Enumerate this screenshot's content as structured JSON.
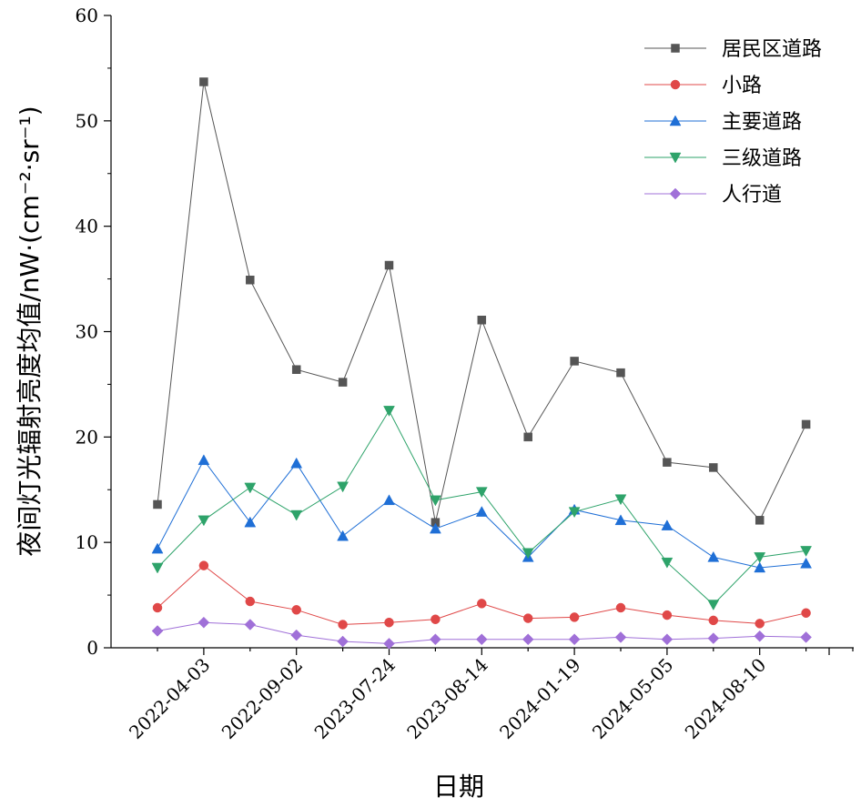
{
  "chart_data": {
    "type": "line",
    "xlabel": "日期",
    "ylabel": "夜间灯光辐射亮度均值/nW·(cm⁻²·sr⁻¹)",
    "ylim": [
      0,
      60
    ],
    "yticks": [
      "0",
      "10",
      "20",
      "30",
      "40",
      "50",
      "60"
    ],
    "x_tick_labels": [
      "2022-04-03",
      "2022-09-02",
      "2023-07-24",
      "2023-08-14",
      "2024-01-19",
      "2024-05-05",
      "2024-08-10"
    ],
    "legend_position": "top-right",
    "grid": false,
    "series": [
      {
        "name": "居民区道路",
        "color": "#555555",
        "marker": "square",
        "values": [
          13.6,
          53.7,
          34.9,
          26.4,
          25.2,
          36.3,
          11.9,
          31.1,
          20.0,
          27.2,
          26.1,
          17.6,
          17.1,
          12.1,
          21.2
        ]
      },
      {
        "name": "小路",
        "color": "#e04848",
        "marker": "circle",
        "values": [
          3.8,
          7.8,
          4.4,
          3.6,
          2.2,
          2.4,
          2.7,
          4.2,
          2.8,
          2.9,
          3.8,
          3.1,
          2.6,
          2.3,
          3.3
        ]
      },
      {
        "name": "主要道路",
        "color": "#1f6fd6",
        "marker": "triangle-up",
        "values": [
          9.4,
          17.8,
          11.9,
          17.5,
          10.6,
          14.0,
          11.3,
          12.9,
          8.6,
          13.1,
          12.1,
          11.6,
          8.6,
          7.6,
          8.0
        ]
      },
      {
        "name": "三级道路",
        "color": "#2ea36a",
        "marker": "triangle-down",
        "values": [
          7.6,
          12.1,
          15.2,
          12.6,
          15.3,
          22.5,
          14.0,
          14.8,
          9.0,
          12.9,
          14.1,
          8.1,
          4.1,
          8.6,
          9.2
        ]
      },
      {
        "name": "人行道",
        "color": "#a070d8",
        "marker": "diamond",
        "values": [
          1.6,
          2.4,
          2.2,
          1.2,
          0.6,
          0.4,
          0.8,
          0.8,
          0.8,
          0.8,
          1.0,
          0.8,
          0.9,
          1.1,
          1.0
        ]
      }
    ]
  }
}
